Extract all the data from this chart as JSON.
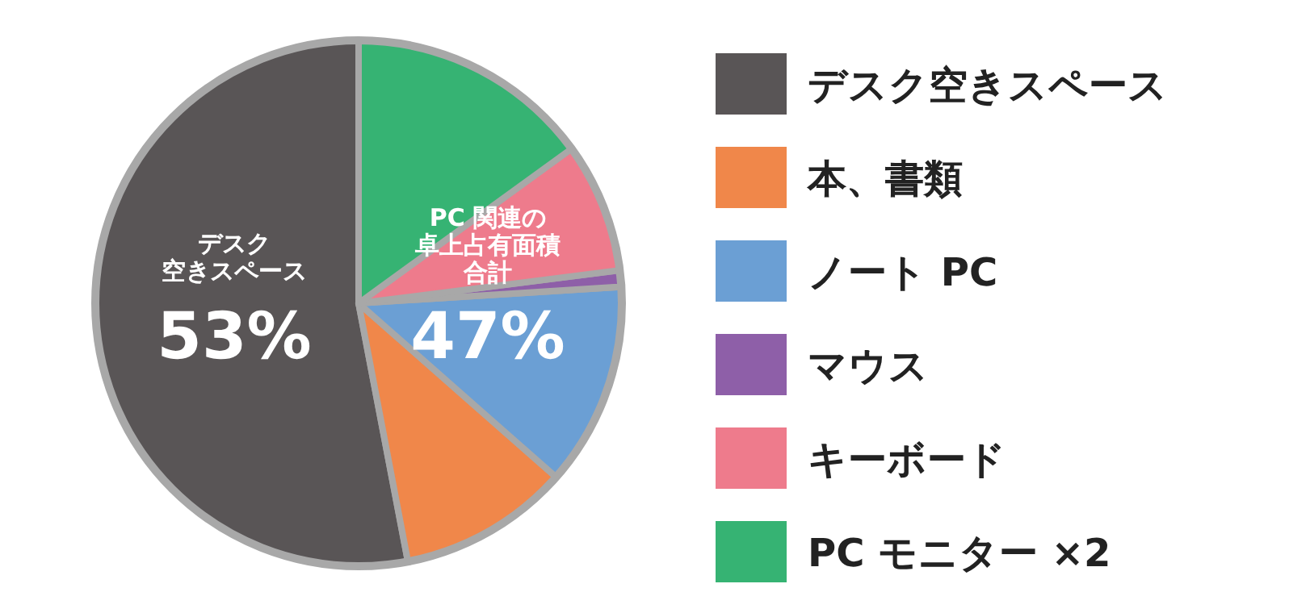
{
  "chart_data": {
    "type": "pie",
    "categories": [
      "デスク空きスペース",
      "本、書類",
      "ノート PC",
      "マウス",
      "キーボード",
      "PC モニター ×2"
    ],
    "values": [
      53,
      10.5,
      12.5,
      1,
      8,
      15
    ],
    "colors": [
      "#595556",
      "#f0874a",
      "#6b9fd4",
      "#8e5fa8",
      "#ee7b8c",
      "#36b373"
    ],
    "annotations": [
      "デスク",
      "空きスペース",
      "53%",
      "PC 関連の",
      "卓上占有面積",
      "合計",
      "47%"
    ],
    "legend": "right"
  }
}
